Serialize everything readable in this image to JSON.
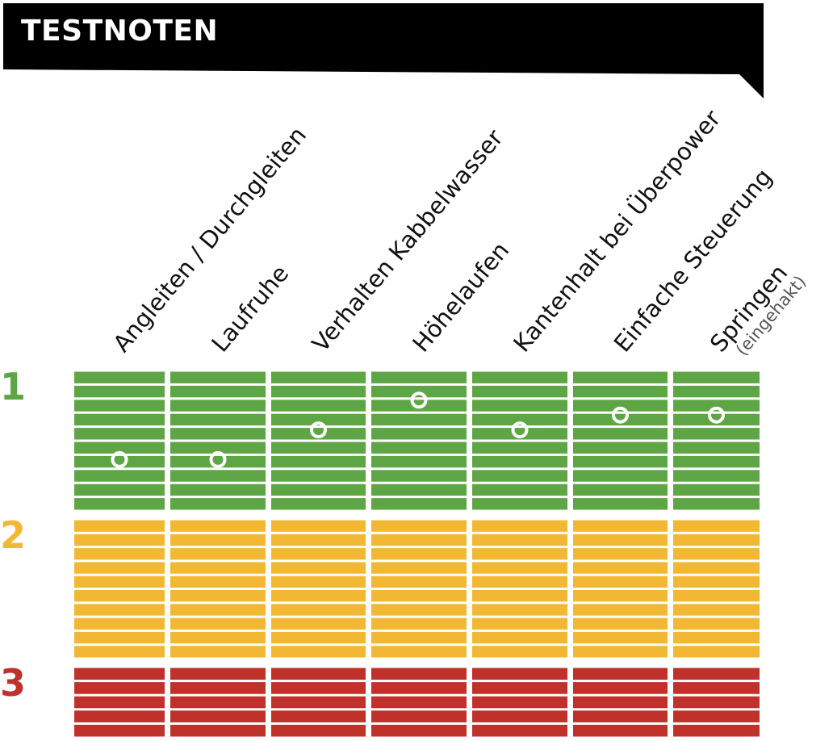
{
  "title": "TESTNOTEN",
  "colors": {
    "banner": "#000000",
    "grade_1": "#5ea645",
    "grade_2": "#f2b833",
    "grade_3": "#c0312b"
  },
  "chart_data": {
    "type": "scatter",
    "title": "TESTNOTEN",
    "categories": [
      "Angleiten / Durchgleiten",
      "Laufruhe",
      "Verhalten Kabbelwasser",
      "Höhelaufen",
      "Kantenhalt bei Überpower",
      "Einfache Steuerung",
      "Springen"
    ],
    "category_notes": [
      "",
      "",
      "",
      "",
      "",
      "",
      "(eingehakt)"
    ],
    "grade_labels": [
      "1",
      "2",
      "3"
    ],
    "values": [
      1.6,
      1.6,
      1.4,
      1.2,
      1.4,
      1.3,
      1.3
    ],
    "ylim": [
      1,
      3.5
    ],
    "y_inverted": true,
    "grid": true
  }
}
